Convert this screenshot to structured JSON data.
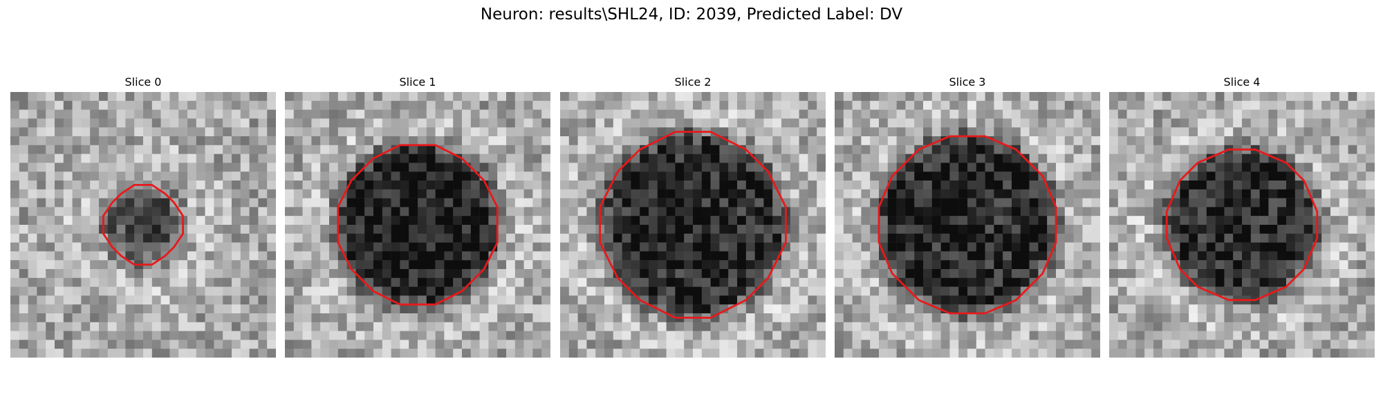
{
  "figure": {
    "title": "Neuron: results\\SHL24, ID: 2039, Predicted Label: DV"
  },
  "contour_color": "#e8191b",
  "slices": [
    {
      "label": "Slice 0",
      "blob": {
        "radius": 0.3,
        "darkness": 0.35
      },
      "contour_radius": 0.3
    },
    {
      "label": "Slice 1",
      "blob": {
        "radius": 0.62,
        "darkness": 0.55
      },
      "contour_radius": 0.62
    },
    {
      "label": "Slice 2",
      "blob": {
        "radius": 0.7,
        "darkness": 0.5
      },
      "contour_radius": 0.7
    },
    {
      "label": "Slice 3",
      "blob": {
        "radius": 0.68,
        "darkness": 0.5
      },
      "contour_radius": 0.68
    },
    {
      "label": "Slice 4",
      "blob": {
        "radius": 0.58,
        "darkness": 0.5
      },
      "contour_radius": 0.58
    }
  ]
}
